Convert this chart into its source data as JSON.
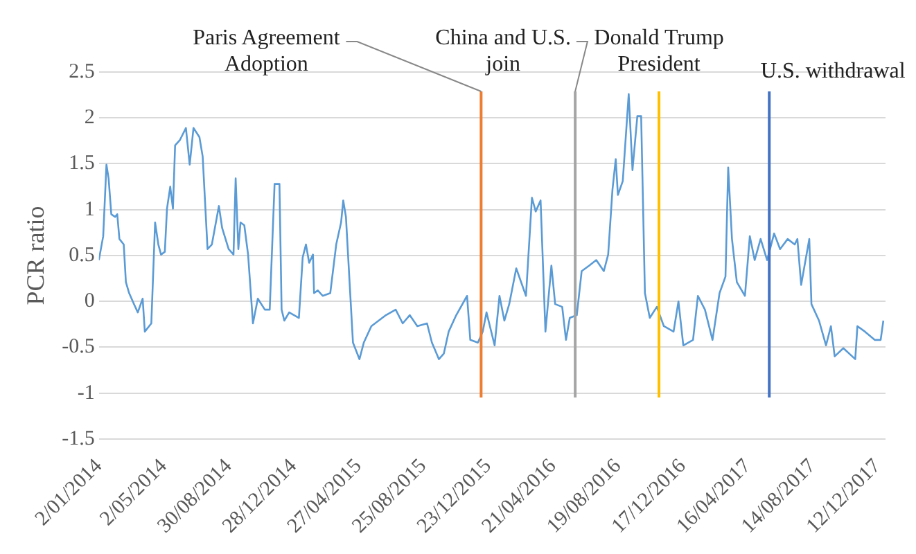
{
  "chart_data": {
    "type": "line",
    "ylabel": "PCR ratio",
    "x": [
      "2014-01-02",
      "2014-01-10",
      "2014-01-16",
      "2014-01-20",
      "2014-01-25",
      "2014-02-01",
      "2014-02-05",
      "2014-02-09",
      "2014-02-17",
      "2014-02-21",
      "2014-02-27",
      "2014-03-08",
      "2014-03-15",
      "2014-03-24",
      "2014-03-28",
      "2014-04-09",
      "2014-04-16",
      "2014-04-22",
      "2014-04-27",
      "2014-05-04",
      "2014-05-08",
      "2014-05-14",
      "2014-05-19",
      "2014-05-23",
      "2014-06-01",
      "2014-06-12",
      "2014-06-19",
      "2014-06-26",
      "2014-07-07",
      "2014-07-13",
      "2014-07-22",
      "2014-07-30",
      "2014-08-12",
      "2014-08-18",
      "2014-08-30",
      "2014-09-08",
      "2014-09-12",
      "2014-09-17",
      "2014-09-21",
      "2014-09-28",
      "2014-10-05",
      "2014-10-14",
      "2014-10-23",
      "2014-11-05",
      "2014-11-14",
      "2014-11-23",
      "2014-12-02",
      "2014-12-06",
      "2014-12-11",
      "2014-12-20",
      "2015-01-07",
      "2015-01-14",
      "2015-01-20",
      "2015-01-26",
      "2015-02-02",
      "2015-02-04",
      "2015-02-11",
      "2015-02-20",
      "2015-03-06",
      "2015-03-17",
      "2015-03-26",
      "2015-03-30",
      "2015-04-04",
      "2015-04-11",
      "2015-04-17",
      "2015-04-29",
      "2015-05-07",
      "2015-05-21",
      "2015-06-17",
      "2015-07-05",
      "2015-07-18",
      "2015-07-31",
      "2015-08-14",
      "2015-09-01",
      "2015-09-10",
      "2015-09-23",
      "2015-10-02",
      "2015-10-11",
      "2015-10-25",
      "2015-11-14",
      "2015-11-20",
      "2015-12-04",
      "2015-12-13",
      "2015-12-20",
      "2016-01-04",
      "2016-01-13",
      "2016-01-22",
      "2016-01-31",
      "2016-02-13",
      "2016-03-02",
      "2016-03-13",
      "2016-03-20",
      "2016-03-29",
      "2016-04-07",
      "2016-04-18",
      "2016-04-25",
      "2016-05-08",
      "2016-05-15",
      "2016-05-22",
      "2016-06-04",
      "2016-06-13",
      "2016-06-27",
      "2016-07-10",
      "2016-07-24",
      "2016-08-01",
      "2016-08-09",
      "2016-08-15",
      "2016-08-19",
      "2016-08-28",
      "2016-09-08",
      "2016-09-15",
      "2016-09-24",
      "2016-10-01",
      "2016-10-08",
      "2016-10-17",
      "2016-10-30",
      "2016-11-12",
      "2016-11-30",
      "2016-12-09",
      "2016-12-18",
      "2017-01-05",
      "2017-01-14",
      "2017-01-27",
      "2017-02-10",
      "2017-02-23",
      "2017-03-06",
      "2017-03-11",
      "2017-03-18",
      "2017-03-27",
      "2017-04-11",
      "2017-04-20",
      "2017-04-29",
      "2017-05-10",
      "2017-05-22",
      "2017-06-04",
      "2017-06-15",
      "2017-06-29",
      "2017-07-12",
      "2017-07-17",
      "2017-07-24",
      "2017-08-02",
      "2017-08-08",
      "2017-08-12",
      "2017-08-26",
      "2017-09-08",
      "2017-09-17",
      "2017-09-24",
      "2017-10-10",
      "2017-11-01",
      "2017-11-05",
      "2017-11-19",
      "2017-12-07",
      "2017-12-18",
      "2017-12-23"
    ],
    "series": [
      {
        "color": "#5b9bd5",
        "values": [
          0.45,
          0.71,
          1.49,
          1.34,
          0.95,
          0.92,
          0.95,
          0.68,
          0.62,
          0.21,
          0.09,
          -0.03,
          -0.12,
          0.03,
          -0.33,
          -0.24,
          0.86,
          0.62,
          0.51,
          0.54,
          1.01,
          1.25,
          1.01,
          1.7,
          1.76,
          1.89,
          1.49,
          1.89,
          1.79,
          1.58,
          0.57,
          0.62,
          1.04,
          0.8,
          0.57,
          0.51,
          1.34,
          0.57,
          0.86,
          0.83,
          0.51,
          -0.24,
          0.03,
          -0.09,
          -0.09,
          1.28,
          1.28,
          -0.09,
          -0.21,
          -0.12,
          -0.18,
          0.48,
          0.62,
          0.42,
          0.51,
          0.09,
          0.12,
          0.06,
          0.09,
          0.62,
          0.86,
          1.1,
          0.92,
          0.18,
          -0.45,
          -0.63,
          -0.45,
          -0.27,
          -0.15,
          -0.09,
          -0.24,
          -0.15,
          -0.27,
          -0.24,
          -0.45,
          -0.63,
          -0.57,
          -0.33,
          -0.15,
          0.06,
          -0.42,
          -0.45,
          -0.33,
          -0.12,
          -0.48,
          0.06,
          -0.21,
          -0.03,
          0.36,
          0.06,
          1.13,
          0.98,
          1.1,
          -0.33,
          0.39,
          -0.03,
          -0.06,
          -0.42,
          -0.18,
          -0.15,
          0.33,
          0.39,
          0.45,
          0.33,
          0.51,
          1.22,
          1.55,
          1.16,
          1.31,
          2.26,
          1.43,
          2.02,
          2.02,
          0.09,
          -0.18,
          -0.06,
          -0.27,
          -0.33,
          0,
          -0.48,
          -0.42,
          0.06,
          -0.09,
          -0.42,
          0.09,
          0.27,
          1.46,
          0.68,
          0.21,
          0.06,
          0.71,
          0.45,
          0.68,
          0.45,
          0.74,
          0.57,
          0.68,
          0.62,
          0.68,
          0.18,
          0.48,
          0.68,
          -0.03,
          -0.21,
          -0.48,
          -0.27,
          -0.6,
          -0.51,
          -0.63,
          -0.27,
          -0.33,
          -0.42,
          -0.42,
          -0.21
        ]
      }
    ],
    "xlim": [
      "2014-01-02",
      "2017-12-27"
    ],
    "xticks": [
      {
        "value": "2014-01-02",
        "label": "2/01/2014"
      },
      {
        "value": "2014-05-02",
        "label": "2/05/2014"
      },
      {
        "value": "2014-08-30",
        "label": "30/08/2014"
      },
      {
        "value": "2014-12-28",
        "label": "28/12/2014"
      },
      {
        "value": "2015-04-27",
        "label": "27/04/2015"
      },
      {
        "value": "2015-08-25",
        "label": "25/08/2015"
      },
      {
        "value": "2015-12-23",
        "label": "23/12/2015"
      },
      {
        "value": "2016-04-21",
        "label": "21/04/2016"
      },
      {
        "value": "2016-08-19",
        "label": "19/08/2016"
      },
      {
        "value": "2016-12-17",
        "label": "17/12/2016"
      },
      {
        "value": "2017-04-16",
        "label": "16/04/2017"
      },
      {
        "value": "2017-08-14",
        "label": "14/08/2017"
      },
      {
        "value": "2017-12-12",
        "label": "12/12/2017"
      }
    ],
    "ylim": [
      -1.5,
      2.5
    ],
    "yticks": [
      -1.5,
      -1,
      -0.5,
      0,
      0.5,
      1,
      1.5,
      2,
      2.5
    ],
    "grid": "y",
    "legend": false,
    "marker": "none",
    "line_style": "solid",
    "ref_lines": [
      {
        "axis": "x",
        "value": "2015-12-10",
        "label": "Paris Agreement Adoption",
        "color": "#ed7d31"
      },
      {
        "axis": "x",
        "value": "2016-06-01",
        "label": "China and U.S. join",
        "color": "#a5a5a5"
      },
      {
        "axis": "x",
        "value": "2016-11-03",
        "label": "Donald Trump President",
        "color": "#ffc000"
      },
      {
        "axis": "x",
        "value": "2017-05-26",
        "label": "U.S. withdrawal",
        "color": "#4472c4"
      }
    ]
  }
}
